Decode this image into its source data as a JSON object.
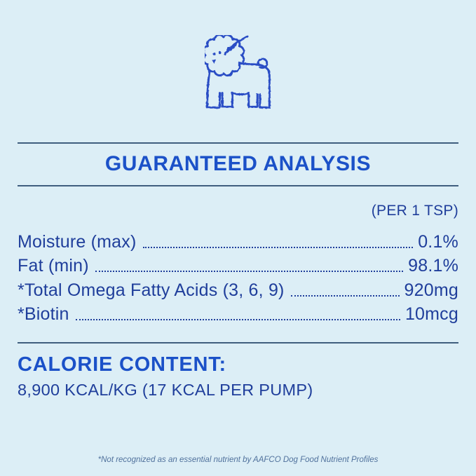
{
  "header": {
    "illustration_icon": "dog-grooming-icon"
  },
  "guaranteed_analysis": {
    "title": "GUARANTEED ANALYSIS",
    "serving_basis": "(PER 1 TSP)",
    "rows": [
      {
        "label": "Moisture (max)",
        "value": "0.1%"
      },
      {
        "label": "Fat (min)",
        "value": "98.1%"
      },
      {
        "label": "*Total Omega Fatty Acids (3, 6, 9)",
        "value": "920mg"
      },
      {
        "label": "*Biotin",
        "value": "10mcg"
      }
    ]
  },
  "calorie_content": {
    "title": "CALORIE CONTENT:",
    "detail": "8,900 KCAL/KG (17 KCAL PER PUMP)"
  },
  "footnote": "*Not recognized as an essential nutrient by AAFCO Dog Food Nutrient Profiles",
  "colors": {
    "background": "#dceef6",
    "heading_blue": "#1b51c8",
    "body_navy": "#1f3e9b",
    "rule": "#3f5e7e",
    "footnote_muted": "#50719c",
    "illustration_stroke": "#2a4ec5"
  }
}
